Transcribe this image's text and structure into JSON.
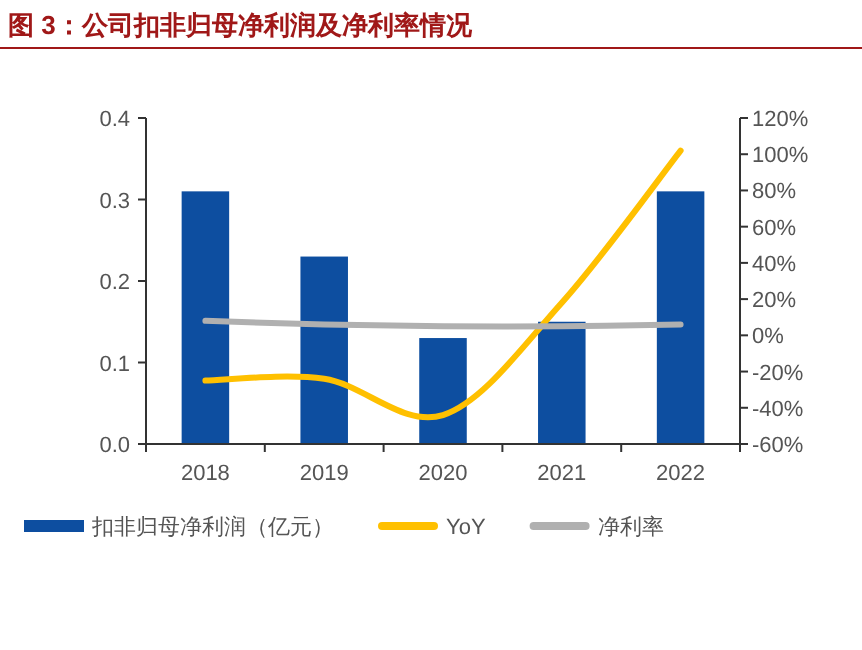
{
  "chart_data": {
    "type": "bar",
    "title": "图 3：公司扣非归母净利润及净利率情况",
    "categories": [
      "2018",
      "2019",
      "2020",
      "2021",
      "2022"
    ],
    "series": [
      {
        "name": "扣非归母净利润（亿元）",
        "color": "#0d4ea0",
        "values": [
          0.31,
          0.23,
          0.13,
          0.15,
          0.31
        ]
      },
      {
        "name": "YoY",
        "type": "line",
        "axis": "y2",
        "color": "#ffc000",
        "values": [
          -25,
          -24,
          -44,
          18,
          102
        ]
      },
      {
        "name": "净利率",
        "type": "line",
        "axis": "y2",
        "color": "#b0b0b0",
        "values": [
          8,
          6,
          5,
          5,
          6
        ]
      }
    ],
    "ylim": [
      0,
      0.4
    ],
    "yticks": [
      {
        "value": 0,
        "label": "0.0"
      },
      0.1,
      0.2,
      0.3,
      0.4
    ],
    "y2lim": [
      -60,
      120
    ],
    "y2ticks": [
      {
        "value": -60,
        "label": "-60%"
      },
      {
        "value": -40,
        "label": "-40%"
      },
      {
        "value": -20,
        "label": "-20%"
      },
      {
        "value": 0,
        "label": "0%"
      },
      {
        "value": 20,
        "label": "20%"
      },
      {
        "value": 40,
        "label": "40%"
      },
      {
        "value": 60,
        "label": "60%"
      },
      {
        "value": 80,
        "label": "80%"
      },
      {
        "value": 100,
        "label": "100%"
      },
      {
        "value": 120,
        "label": "120%"
      }
    ],
    "grid": false,
    "legend": "bottom",
    "marker": "none"
  }
}
